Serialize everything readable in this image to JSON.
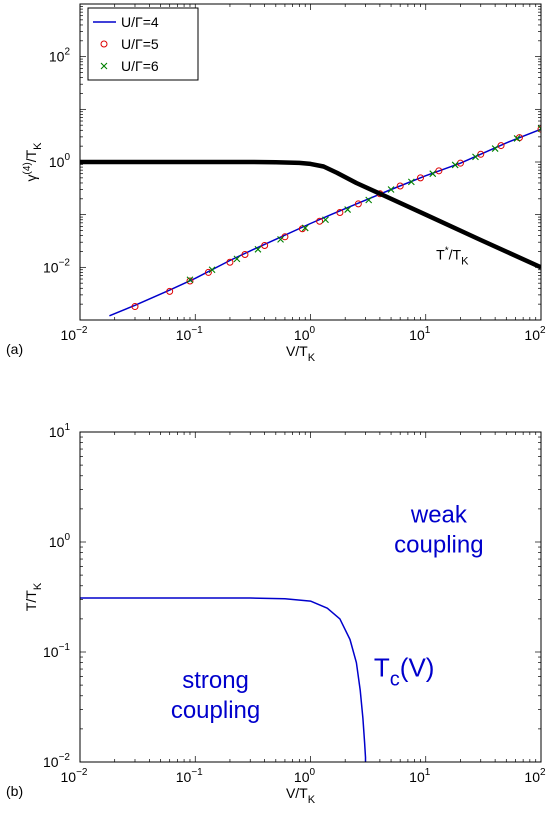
{
  "chart_data": [
    {
      "type": "line",
      "panel_label": "(a)",
      "xlabel": "V/T_K",
      "ylabel": "γ^(4)/T_K",
      "xscale": "log",
      "yscale": "log",
      "xlim": [
        0.01,
        100
      ],
      "ylim": [
        0.001,
        1000
      ],
      "xticks": [
        {
          "value": 0.01,
          "base": "10",
          "exp": "−2"
        },
        {
          "value": 0.1,
          "base": "10",
          "exp": "−1"
        },
        {
          "value": 1,
          "base": "10",
          "exp": "0"
        },
        {
          "value": 10,
          "base": "10",
          "exp": "1"
        },
        {
          "value": 100,
          "base": "10",
          "exp": "2"
        }
      ],
      "yticks": [
        {
          "value": 0.01,
          "base": "10",
          "exp": "−2"
        },
        {
          "value": 1,
          "base": "10",
          "exp": "0"
        },
        {
          "value": 100,
          "base": "10",
          "exp": "2"
        }
      ],
      "legend_position": "top-left",
      "legend": [
        {
          "label": "U/Γ=4",
          "marker": "line",
          "color": "#0000cc"
        },
        {
          "label": "U/Γ=5",
          "marker": "circle",
          "color": "#dd0000"
        },
        {
          "label": "U/Γ=6",
          "marker": "x",
          "color": "#008000"
        }
      ],
      "series": [
        {
          "name": "U/Γ=4",
          "style": "line",
          "color": "#0000cc",
          "x": [
            0.018,
            0.03,
            0.06,
            0.1,
            0.2,
            0.3,
            0.5,
            1.0,
            1.5,
            2.5,
            5,
            10,
            20,
            50,
            100
          ],
          "y": [
            0.0012,
            0.0019,
            0.0037,
            0.0062,
            0.0135,
            0.0205,
            0.034,
            0.068,
            0.1,
            0.16,
            0.3,
            0.55,
            0.95,
            2.3,
            4.2
          ]
        },
        {
          "name": "U/Γ=5",
          "style": "circle",
          "color": "#dd0000",
          "x": [
            0.03,
            0.06,
            0.09,
            0.13,
            0.2,
            0.27,
            0.4,
            0.6,
            0.85,
            1.2,
            1.8,
            2.6,
            4,
            6,
            9,
            13,
            20,
            30,
            45,
            65,
            100
          ],
          "y": [
            0.0018,
            0.0035,
            0.0055,
            0.008,
            0.0125,
            0.0175,
            0.026,
            0.038,
            0.054,
            0.075,
            0.11,
            0.16,
            0.25,
            0.35,
            0.5,
            0.68,
            0.95,
            1.4,
            2.05,
            2.9,
            4.2
          ]
        },
        {
          "name": "U/Γ=6",
          "style": "x",
          "color": "#008000",
          "x": [
            0.09,
            0.14,
            0.23,
            0.35,
            0.55,
            0.9,
            1.35,
            2.1,
            3.2,
            5,
            7.5,
            11.5,
            18,
            27,
            40,
            62,
            100
          ],
          "y": [
            0.0058,
            0.009,
            0.0145,
            0.022,
            0.034,
            0.056,
            0.08,
            0.125,
            0.19,
            0.3,
            0.42,
            0.6,
            0.88,
            1.25,
            1.8,
            2.8,
            4.3
          ]
        },
        {
          "style": "thick-line",
          "color": "#000000",
          "x": [
            0.01,
            0.1,
            0.3,
            0.5,
            0.8,
            1.0,
            1.3,
            1.7,
            2.5,
            4,
            10,
            30,
            100
          ],
          "y": [
            1.0,
            1.0,
            1.0,
            0.99,
            0.96,
            0.92,
            0.82,
            0.62,
            0.4,
            0.25,
            0.1,
            0.033,
            0.01
          ]
        }
      ],
      "annotations": [
        {
          "text_base": "T",
          "text_sup": "*",
          "text_mid": "/T",
          "text_sub": "K",
          "x": 17,
          "y": 0.014
        }
      ]
    },
    {
      "type": "line",
      "panel_label": "(b)",
      "xlabel": "V/T_K",
      "ylabel": "T/T_K",
      "xscale": "log",
      "yscale": "log",
      "xlim": [
        0.01,
        100
      ],
      "ylim": [
        0.01,
        10
      ],
      "xticks": [
        {
          "value": 0.01,
          "base": "10",
          "exp": "−2"
        },
        {
          "value": 0.1,
          "base": "10",
          "exp": "−1"
        },
        {
          "value": 1,
          "base": "10",
          "exp": "0"
        },
        {
          "value": 10,
          "base": "10",
          "exp": "1"
        },
        {
          "value": 100,
          "base": "10",
          "exp": "2"
        }
      ],
      "yticks": [
        {
          "value": 0.01,
          "base": "10",
          "exp": "−2"
        },
        {
          "value": 0.1,
          "base": "10",
          "exp": "−1"
        },
        {
          "value": 1,
          "base": "10",
          "exp": "0"
        },
        {
          "value": 10,
          "base": "10",
          "exp": "1"
        }
      ],
      "series": [
        {
          "style": "line",
          "color": "#0000cc",
          "x": [
            0.01,
            0.1,
            0.3,
            0.6,
            1.0,
            1.4,
            1.8,
            2.2,
            2.5,
            2.7,
            2.85,
            2.95,
            3.0,
            3.0
          ],
          "y": [
            0.31,
            0.31,
            0.31,
            0.305,
            0.29,
            0.25,
            0.2,
            0.13,
            0.08,
            0.045,
            0.025,
            0.015,
            0.011,
            0.01
          ]
        }
      ],
      "annotations": [
        {
          "lines": [
            "weak",
            "coupling"
          ],
          "x": 13,
          "y": 1.5,
          "color": "#0000cc"
        },
        {
          "lines": [
            "strong",
            "coupling"
          ],
          "x": 0.15,
          "y": 0.047,
          "color": "#0000cc"
        },
        {
          "text_base": "T",
          "text_sub": "c",
          "text_mid": "(V)",
          "x": 6.5,
          "y": 0.06,
          "color": "#0000cc"
        }
      ]
    }
  ]
}
